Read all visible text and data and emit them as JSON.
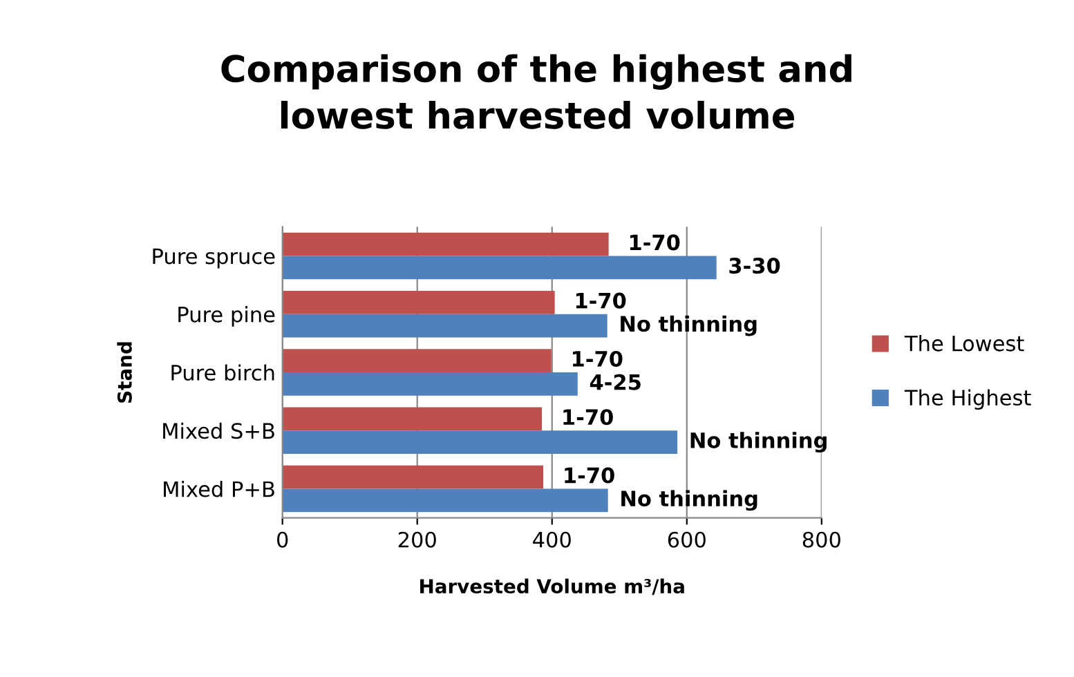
{
  "chart_data": {
    "type": "bar",
    "orientation": "horizontal",
    "title": "Comparison of the highest and\nlowest harvested volume",
    "xlabel": "Harvested Volume m³/ha",
    "ylabel": "Stand",
    "categories": [
      "Pure spruce",
      "Pure pine",
      "Pure birch",
      "Mixed S+B",
      "Mixed P+B"
    ],
    "series": [
      {
        "name": "The Lowest",
        "color": "#c0504d",
        "values": [
          484,
          404,
          399,
          385,
          387
        ],
        "value_labels": [
          "1-70",
          "1-70",
          "1-70",
          "1-70",
          "1-70"
        ]
      },
      {
        "name": "The Highest",
        "color": "#4f81bd",
        "values": [
          644,
          482,
          438,
          586,
          483
        ],
        "value_labels": [
          "3-30",
          "No thinning",
          "4-25",
          "No thinning",
          "No thinning"
        ]
      }
    ],
    "xlim": [
      0,
      800
    ],
    "xticks": [
      0,
      200,
      400,
      600,
      800
    ],
    "grid": "x",
    "legend": "right"
  }
}
